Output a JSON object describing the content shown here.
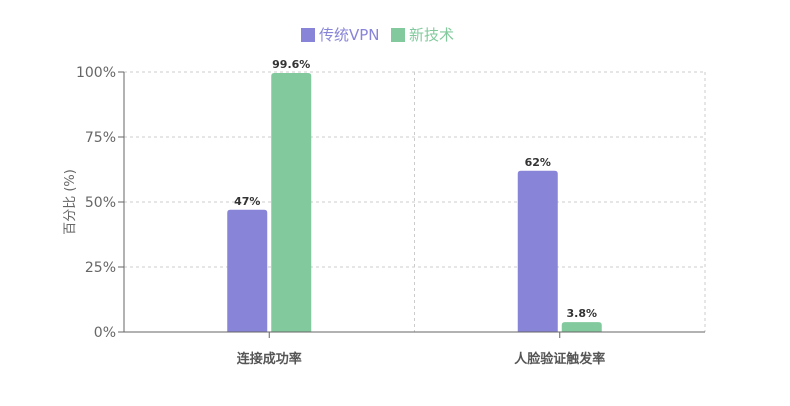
{
  "chart_data": {
    "type": "bar",
    "categories": [
      "连接成功率",
      "人脸验证触发率"
    ],
    "series": [
      {
        "name": "传统VPN",
        "values": [
          47,
          62
        ],
        "labels": [
          "47%",
          "62%"
        ],
        "color": "#8884d8"
      },
      {
        "name": "新技术",
        "values": [
          99.6,
          3.8
        ],
        "labels": [
          "99.6%",
          "3.8%"
        ],
        "color": "#82ca9d"
      }
    ],
    "ylabel": "百分比 (%)",
    "ylim": [
      0,
      100
    ],
    "yticks": [
      0,
      25,
      50,
      75,
      100
    ],
    "ytick_labels": [
      "0%",
      "25%",
      "50%",
      "75%",
      "100%"
    ],
    "grid": true,
    "legend_position": "top"
  }
}
